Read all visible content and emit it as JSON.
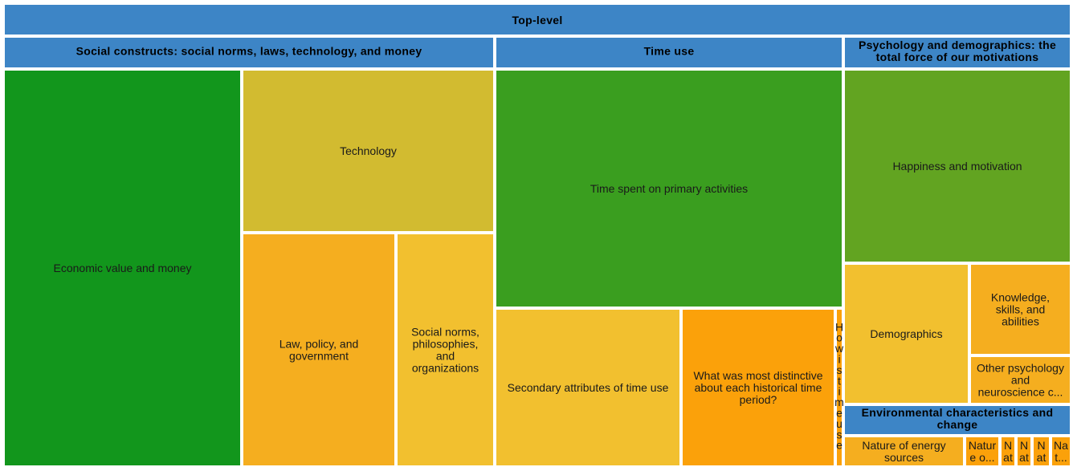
{
  "chart_data": {
    "type": "treemap",
    "root": "Top-level",
    "groups": [
      {
        "name": "Social constructs: social norms, laws, technology, and money",
        "children": [
          {
            "name": "Economic value and money",
            "lines": [
              "Economic value and money"
            ],
            "color": "#12961c"
          },
          {
            "name": "Technology",
            "lines": [
              "Technology"
            ],
            "color": "#d2bb30"
          },
          {
            "name": "Law, policy, and government",
            "lines": [
              "Law, policy, and",
              "government"
            ],
            "color": "#f5ae1f"
          },
          {
            "name": "Social norms, philosophies, and organizations",
            "lines": [
              "Social norms,",
              "philosophies,",
              "and",
              "organizations"
            ],
            "color": "#f2c02f"
          }
        ]
      },
      {
        "name": "Time use",
        "children": [
          {
            "name": "Time spent on primary activities",
            "lines": [
              "Time spent on primary activities"
            ],
            "color": "#3a9e1f"
          },
          {
            "name": "Secondary attributes of time use",
            "lines": [
              "Secondary attributes of time use"
            ],
            "color": "#f2c02f"
          },
          {
            "name": "What was most distinctive about each historical time period?",
            "lines": [
              "What was most distinctive",
              "about each historical time",
              "period?"
            ],
            "color": "#fba10a"
          },
          {
            "name": "How is time use",
            "lines": [
              "H",
              "o",
              "w",
              "i",
              "s",
              "t",
              "i",
              "m",
              "e",
              "u",
              "s",
              "e"
            ],
            "color": "#fba10a"
          }
        ]
      },
      {
        "name": "Psychology and demographics: the total force of our motivations",
        "header_lines": [
          "Psychology and demographics: the",
          "total force of our motivations"
        ],
        "children": [
          {
            "name": "Happiness and motivation",
            "lines": [
              "Happiness and motivation"
            ],
            "color": "#62a421"
          },
          {
            "name": "Demographics",
            "lines": [
              "Demographics"
            ],
            "color": "#f2c02f"
          },
          {
            "name": "Knowledge, skills, and abilities",
            "lines": [
              "Knowledge,",
              "skills, and",
              "abilities"
            ],
            "color": "#f5ae1f"
          },
          {
            "name": "Other psychology and neuroscience c...",
            "lines": [
              "Other psychology",
              "and",
              "neuroscience c..."
            ],
            "color": "#f5ae1f"
          }
        ]
      },
      {
        "name": "Environmental characteristics and change",
        "header_lines": [
          "Environmental characteristics and",
          "change"
        ],
        "children": [
          {
            "name": "Nature of energy sources",
            "lines": [
              "Nature of energy",
              "sources"
            ],
            "color": "#f5ae1f"
          },
          {
            "name": "Nature o...",
            "lines": [
              "Natur",
              "e o..."
            ],
            "color": "#fba10a"
          },
          {
            "name": "Nat",
            "lines": [
              "N",
              "at"
            ],
            "color": "#fba10a"
          },
          {
            "name": "Nat",
            "lines": [
              "N",
              "at"
            ],
            "color": "#fba10a"
          },
          {
            "name": "Nat",
            "lines": [
              "N",
              "at"
            ],
            "color": "#fba10a"
          },
          {
            "name": "Nat...",
            "lines": [
              "Na",
              "t..."
            ],
            "color": "#fba10a"
          }
        ]
      }
    ],
    "header_color": "#3d85c6"
  }
}
